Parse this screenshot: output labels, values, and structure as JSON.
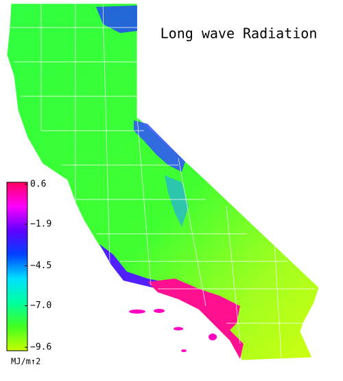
{
  "map": {
    "title": "Long wave Radiation",
    "colorbar": {
      "lim": [
        -9.6,
        0.6
      ],
      "ticks": [
        0.6,
        {
          "value": -1.9,
          "label": "−1.9"
        },
        {
          "value": -4.5,
          "label": "−4.5"
        },
        {
          "value": -7,
          "label": "−7.0"
        },
        {
          "value": -9.6,
          "label": "−9.6"
        }
      ],
      "colormap": [
        "#c8ff00",
        "#40ff20",
        "#00ffa0",
        "#00e0ff",
        "#0040ff",
        "#6000ff",
        "#ff00ff",
        "#ff0060"
      ],
      "unit": "MJ/m↑2"
    }
  }
}
